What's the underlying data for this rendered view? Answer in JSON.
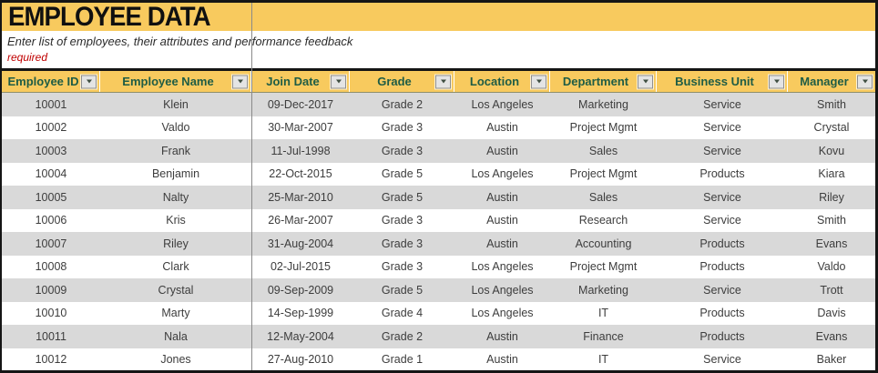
{
  "title": "EMPLOYEE DATA",
  "subtitle": "Enter list of employees, their attributes and performance feedback",
  "required_note": "required",
  "colors": {
    "band_yellow": "#F8CA5E",
    "header_text_green": "#1E5C45",
    "row_alt_gray": "#D9D9D9",
    "required_red": "#C00000",
    "border_black": "#151515"
  },
  "table": {
    "columns": [
      {
        "key": "employee-id",
        "label": "Employee ID"
      },
      {
        "key": "employee-name",
        "label": "Employee Name"
      },
      {
        "key": "join-date",
        "label": "Join Date"
      },
      {
        "key": "grade",
        "label": "Grade"
      },
      {
        "key": "location",
        "label": "Location"
      },
      {
        "key": "department",
        "label": "Department"
      },
      {
        "key": "business-unit",
        "label": "Business Unit"
      },
      {
        "key": "manager",
        "label": "Manager"
      }
    ],
    "rows": [
      [
        "10001",
        "Klein",
        "09-Dec-2017",
        "Grade 2",
        "Los Angeles",
        "Marketing",
        "Service",
        "Smith"
      ],
      [
        "10002",
        "Valdo",
        "30-Mar-2007",
        "Grade 3",
        "Austin",
        "Project Mgmt",
        "Service",
        "Crystal"
      ],
      [
        "10003",
        "Frank",
        "11-Jul-1998",
        "Grade 3",
        "Austin",
        "Sales",
        "Service",
        "Kovu"
      ],
      [
        "10004",
        "Benjamin",
        "22-Oct-2015",
        "Grade 5",
        "Los Angeles",
        "Project Mgmt",
        "Products",
        "Kiara"
      ],
      [
        "10005",
        "Nalty",
        "25-Mar-2010",
        "Grade 5",
        "Austin",
        "Sales",
        "Service",
        "Riley"
      ],
      [
        "10006",
        "Kris",
        "26-Mar-2007",
        "Grade 3",
        "Austin",
        "Research",
        "Service",
        "Smith"
      ],
      [
        "10007",
        "Riley",
        "31-Aug-2004",
        "Grade 3",
        "Austin",
        "Accounting",
        "Products",
        "Evans"
      ],
      [
        "10008",
        "Clark",
        "02-Jul-2015",
        "Grade 3",
        "Los Angeles",
        "Project Mgmt",
        "Products",
        "Valdo"
      ],
      [
        "10009",
        "Crystal",
        "09-Sep-2009",
        "Grade 5",
        "Los Angeles",
        "Marketing",
        "Service",
        "Trott"
      ],
      [
        "10010",
        "Marty",
        "14-Sep-1999",
        "Grade 4",
        "Los Angeles",
        "IT",
        "Products",
        "Davis"
      ],
      [
        "10011",
        "Nala",
        "12-May-2004",
        "Grade 2",
        "Austin",
        "Finance",
        "Products",
        "Evans"
      ],
      [
        "10012",
        "Jones",
        "27-Aug-2010",
        "Grade 1",
        "Austin",
        "IT",
        "Service",
        "Baker"
      ]
    ]
  }
}
